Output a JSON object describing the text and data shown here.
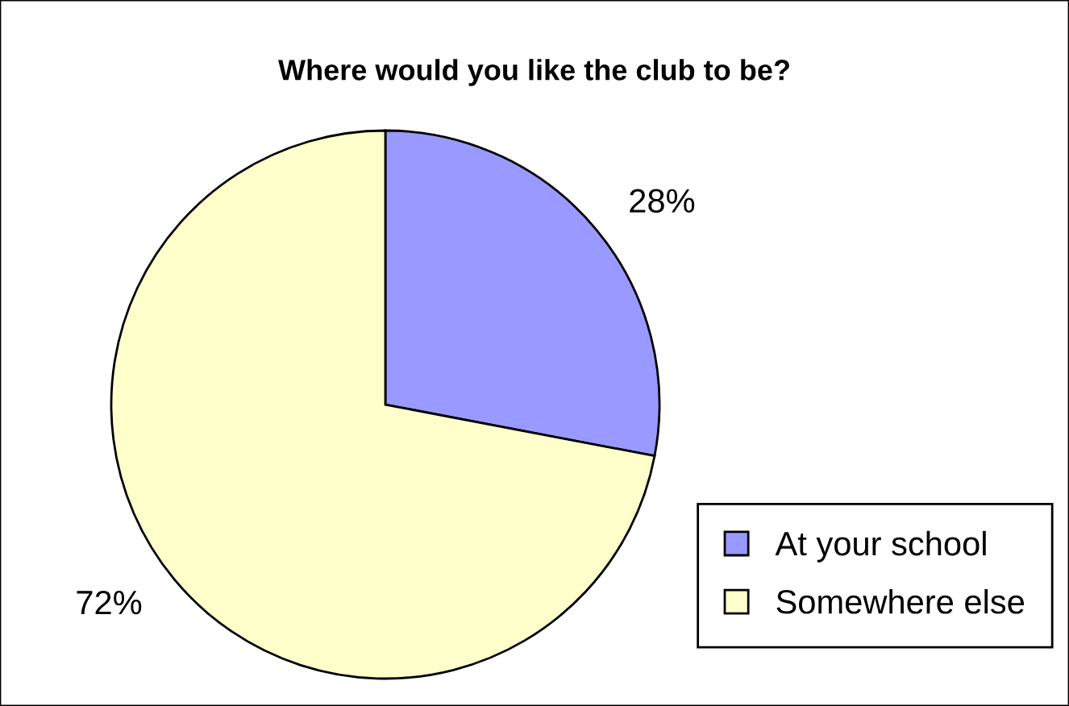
{
  "chart_data": {
    "type": "pie",
    "title": "Where would you like the club to be?",
    "categories": [
      "At your school",
      "Somewhere else"
    ],
    "values": [
      28,
      72
    ],
    "value_labels": [
      "28%",
      "72%"
    ],
    "colors": [
      "#9999ff",
      "#ffffcc"
    ],
    "legend": "bottom right"
  }
}
